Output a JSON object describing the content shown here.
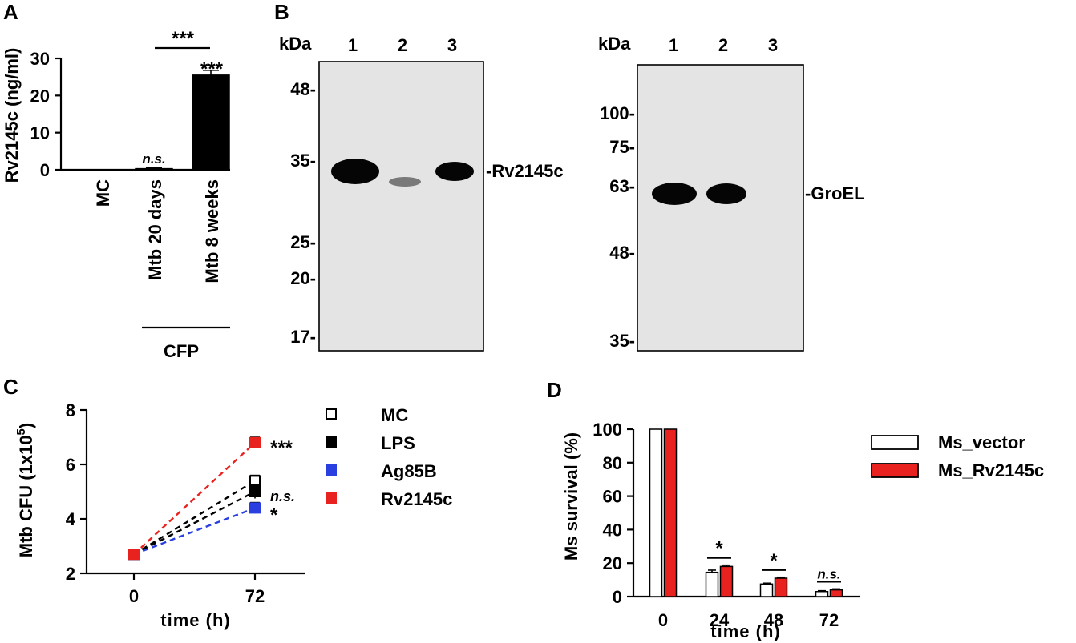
{
  "panel_labels": {
    "a": "A",
    "b": "B",
    "c": "C",
    "d": "D"
  },
  "colors": {
    "black": "#000000",
    "white": "#ffffff",
    "red": "#e8231f",
    "blue": "#2a3fe0",
    "blot_bg": "#e4e4e4",
    "band": "#050505"
  },
  "chart_data": [
    {
      "panel": "A",
      "type": "bar",
      "ylabel": "Rv2145c (ng/ml)",
      "ylim": [
        0,
        30
      ],
      "yticks": [
        "0",
        "10",
        "20",
        "30"
      ],
      "categories": [
        "MC",
        "Mtb 20 days",
        "Mtb 8 weeks"
      ],
      "values": [
        0,
        0.3,
        25.5
      ],
      "errors": [
        0,
        0.2,
        1.3
      ],
      "group_label": "CFP",
      "annotations": {
        "bar_ns": "n.s.",
        "bar_sig": "***",
        "bracket_sig": "***"
      }
    },
    {
      "panel": "B",
      "type": "table",
      "blots": [
        {
          "kda_label": "kDa",
          "lanes": [
            "1",
            "2",
            "3"
          ],
          "markers": [
            "48-",
            "35-",
            "25-",
            "20-",
            "17-"
          ],
          "band_label": "-Rv2145c",
          "band_intensity": [
            1.0,
            0.35,
            0.9
          ]
        },
        {
          "kda_label": "kDa",
          "lanes": [
            "1",
            "2",
            "3"
          ],
          "markers": [
            "100-",
            "75-",
            "63-",
            "48-",
            "35-"
          ],
          "band_label": "-GroEL",
          "band_intensity": [
            1.0,
            0.95,
            0.0
          ]
        }
      ]
    },
    {
      "panel": "C",
      "type": "line",
      "xlabel": "time (h)",
      "ylabel_main": "Mtb CFU (1x10",
      "ylabel_sup": "5",
      "ylabel_end": ")",
      "ylim": [
        2,
        8
      ],
      "yticks": [
        "2",
        "4",
        "6",
        "8"
      ],
      "x": [
        0,
        72
      ],
      "xticks": [
        "0",
        "72"
      ],
      "series": [
        {
          "name": "MC",
          "values": [
            2.7,
            5.4
          ],
          "errors": [
            0.05,
            0.2
          ],
          "marker": "open-square",
          "color": "#000000"
        },
        {
          "name": "LPS",
          "values": [
            2.7,
            5.0
          ],
          "errors": [
            0.05,
            0.25
          ],
          "marker": "filled-square",
          "color": "#000000"
        },
        {
          "name": "Ag85B",
          "values": [
            2.7,
            4.4
          ],
          "errors": [
            0.05,
            0.2
          ],
          "marker": "filled-square",
          "color": "#2a3fe0"
        },
        {
          "name": "Rv2145c",
          "values": [
            2.7,
            6.8
          ],
          "errors": [
            0.05,
            0.2
          ],
          "marker": "filled-square",
          "color": "#e8231f"
        }
      ],
      "annotations": {
        "rv": "***",
        "mc": "n.s.",
        "ag": "*"
      },
      "legend": "right"
    },
    {
      "panel": "D",
      "type": "bar",
      "xlabel": "time (h)",
      "ylabel": "Ms survival (%)",
      "ylim": [
        0,
        100
      ],
      "yticks": [
        "0",
        "20",
        "40",
        "60",
        "80",
        "100"
      ],
      "categories": [
        "0",
        "24",
        "48",
        "72"
      ],
      "series": [
        {
          "name": "Ms_vector",
          "values": [
            100,
            14.5,
            7.5,
            3
          ],
          "errors": [
            0,
            1.3,
            0.5,
            0.5
          ],
          "color": "#ffffff"
        },
        {
          "name": "Ms_Rv2145c",
          "values": [
            100,
            18,
            11,
            4
          ],
          "errors": [
            0,
            0.8,
            0.6,
            0.6
          ],
          "color": "#e8231f"
        }
      ],
      "significance": [
        "",
        "*",
        "*",
        "n.s."
      ],
      "legend": "right"
    }
  ]
}
